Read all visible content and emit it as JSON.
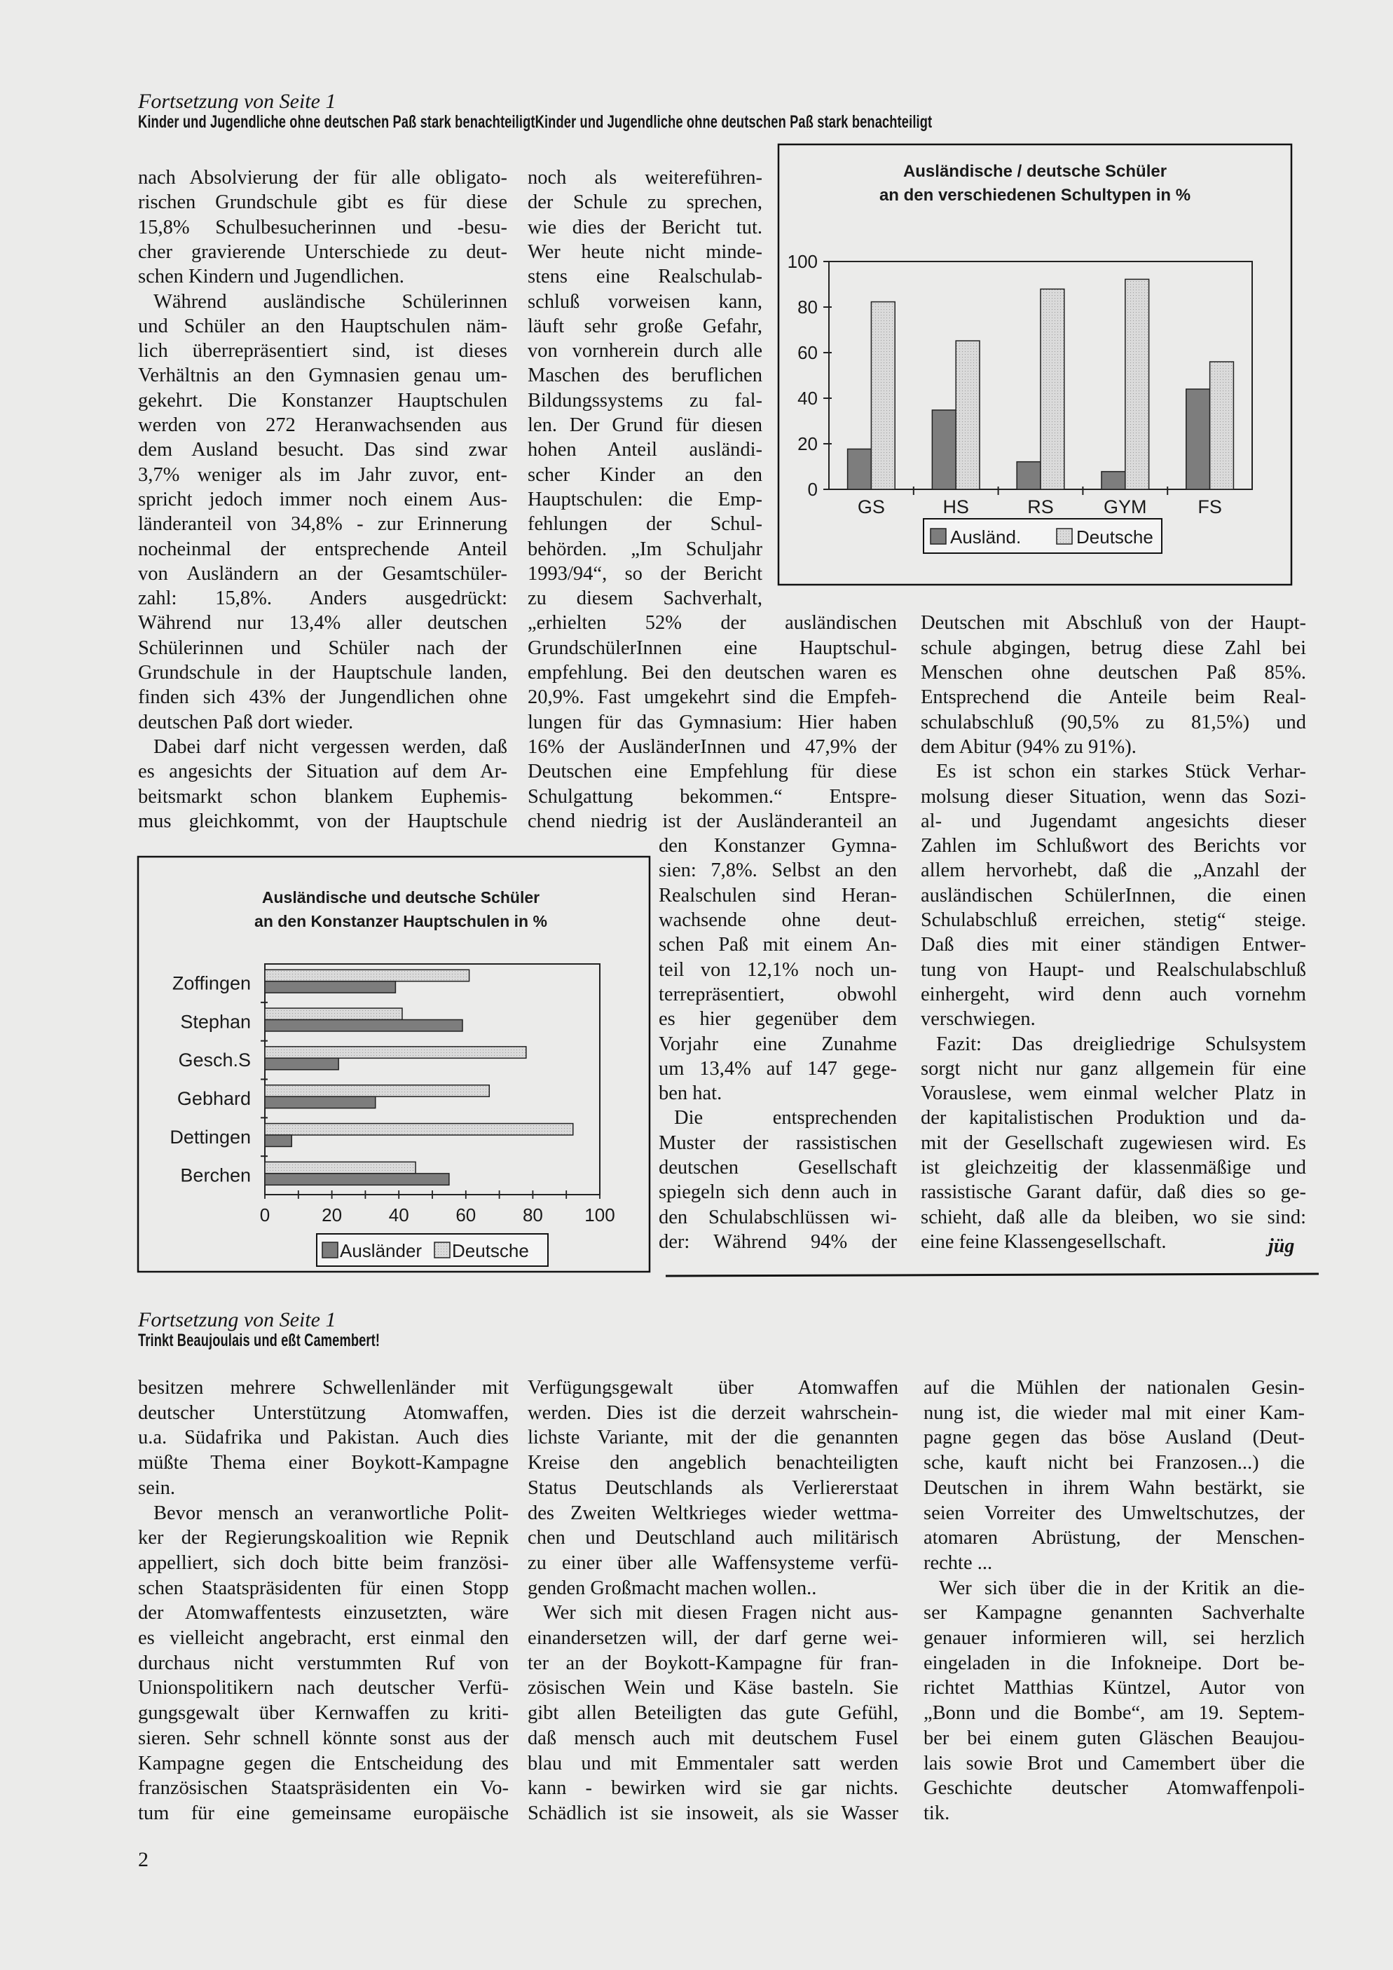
{
  "article1": {
    "kicker": "Fortsetzung von Seite 1",
    "headline": "Kinder und Jugendliche ohne deutschen Paß stark benachteiligtKinder und Jugendliche ohne deutschen Paß stark benachteiligt",
    "col1": [
      [
        "nach Absolvierung der für alle obligato-",
        "rischen Grundschule gibt es für diese",
        "15,8% Schulbesucherinnen und -besu-",
        "cher gravierende Unterschiede zu deut-",
        "schen Kindern und Jugendlichen."
      ],
      [
        "Während ausländische Schülerinnen",
        "und Schüler an den Hauptschulen näm-",
        "lich überrepräsentiert sind, ist dieses",
        "Verhältnis an den Gymnasien genau um-",
        "gekehrt. Die Konstanzer Hauptschulen",
        "werden von 272 Heranwachsenden aus",
        "dem Ausland besucht. Das sind zwar",
        "3,7% weniger als im Jahr zuvor, ent-",
        "spricht jedoch immer noch einem Aus-",
        "länderanteil von 34,8% - zur Erinnerung",
        "nocheinmal der entsprechende Anteil",
        "von Ausländern an der Gesamtschüler-",
        "zahl: 15,8%. Anders ausgedrückt:",
        "Während nur 13,4% aller deutschen",
        "Schülerinnen und Schüler nach der",
        "Grundschule in der Hauptschule landen,",
        "finden sich 43% der Jungendlichen ohne",
        "deutschen Paß dort wieder."
      ],
      [
        "Dabei darf nicht vergessen werden, daß",
        "es angesichts der Situation auf dem Ar-",
        "beitsmarkt schon blankem Euphemis-",
        "mus gleichkommt, von der Hauptschule"
      ]
    ],
    "col2": [
      [
        "noch als weitereführen-",
        "der Schule zu sprechen,",
        "wie dies der Bericht tut.",
        "Wer heute nicht minde-",
        "stens eine Realschulab-",
        "schluß vorweisen kann,",
        "läuft sehr große Gefahr,",
        "von vornherein durch alle",
        "Maschen des beruflichen",
        "Bildungssystems zu fal-",
        "len. Der Grund für diesen",
        "hohen Anteil ausländi-",
        "scher Kinder an den",
        "Hauptschulen: die Emp-",
        "fehlungen der Schul-",
        "behörden. „Im Schuljahr",
        "1993/94“, so der Bericht",
        "zu diesem Sachverhalt,",
        "„erhielten 52% der ausländischen",
        "GrundschülerInnen eine Hauptschul-",
        "empfehlung. Bei den deutschen waren es",
        "20,9%. Fast umgekehrt sind die Empfeh-",
        "lungen für das Gymnasium: Hier haben",
        "16% der AusländerInnen und 47,9% der",
        "Deutschen eine Empfehlung für diese",
        "Schulgattung bekommen.“ Entspre-",
        "chend niedrig ist der Ausländeranteil an",
        "den Konstanzer Gymna-",
        "sien: 7,8%. Selbst an den",
        "Realschulen sind Heran-",
        "wachsende ohne deut-",
        "schen Paß mit einem An-",
        "teil von 12,1% noch un-",
        "terrepräsentiert, obwohl",
        "es hier gegenüber dem",
        "Vorjahr eine Zunahme",
        "um 13,4% auf 147 gege-",
        "ben hat."
      ],
      [
        "Die entsprechenden",
        "Muster der rassistischen",
        "deutschen Gesellschaft",
        "spiegeln sich denn auch in",
        "den Schulabschlüssen wi-",
        "der: Während 94% der"
      ]
    ],
    "col3": [
      [
        "Deutschen mit Abschluß von der Haupt-",
        "schule abgingen, betrug diese Zahl bei",
        "Menschen ohne deutschen Paß 85%.",
        "Entsprechend die Anteile beim Real-",
        "schulabschluß (90,5% zu 81,5%) und",
        "dem Abitur (94% zu 91%)."
      ],
      [
        "Es ist schon ein starkes Stück Verhar-",
        "molsung dieser Situation, wenn das Sozi-",
        "al- und Jugendamt angesichts dieser",
        "Zahlen im Schlußwort des Berichts vor",
        "allem hervorhebt, daß die „Anzahl der",
        "ausländischen SchülerInnen, die einen",
        "Schulabschluß erreichen, stetig“ steige.",
        "Daß dies mit einer ständigen Entwer-",
        "tung von Haupt- und Realschulabschluß",
        "einhergeht, wird denn auch vornehm",
        "verschwiegen."
      ],
      [
        "Fazit: Das dreigliedrige Schulsystem",
        "sorgt nicht nur ganz allgemein für eine",
        "Vorauslese, wem einmal welcher Platz in",
        "der kapitalistischen Produktion und da-",
        "mit der Gesellschaft zugewiesen wird. Es",
        "ist gleichzeitig der klassenmäßige und",
        "rassistische Garant dafür, daß dies so ge-",
        "schieht, daß alle da bleiben, wo sie sind:",
        "eine feine Klassengesellschaft."
      ]
    ],
    "signature": "jüg"
  },
  "article2": {
    "kicker": "Fortsetzung von Seite 1",
    "headline": "Trinkt Beaujoulais und eßt Camembert!",
    "col1": [
      [
        "besitzen mehrere Schwellenländer mit",
        "deutscher Unterstützung Atomwaffen,",
        "u.a. Südafrika und Pakistan. Auch dies",
        "müßte Thema einer Boykott-Kampagne",
        "sein."
      ],
      [
        "Bevor mensch an veranwortliche Polit-",
        "ker der Regierungskoalition wie Repnik",
        "appelliert, sich doch bitte beim französi-",
        "schen Staatspräsidenten für einen Stopp",
        "der Atomwaffentests einzusetzten, wäre",
        "es vielleicht angebracht, erst einmal den",
        "durchaus nicht verstummten Ruf von",
        "Unionspolitikern nach deutscher Verfü-",
        "gungsgewalt über Kernwaffen zu kriti-",
        "sieren. Sehr schnell könnte sonst aus der",
        "Kampagne gegen die Entscheidung des",
        "französischen Staatspräsidenten ein Vo-",
        "tum für eine gemeinsame europäische"
      ]
    ],
    "col2": [
      [
        "Verfügungsgewalt über Atomwaffen",
        "werden. Dies ist die derzeit wahrschein-",
        "lichste Variante, mit der die genannten",
        "Kreise den angeblich benachteiligten",
        "Status Deutschlands als Verliererstaat",
        "des Zweiten Weltkrieges wieder wettma-",
        "chen und Deutschland auch militärisch",
        "zu einer über alle Waffensysteme verfü-",
        "genden Großmacht machen wollen.."
      ],
      [
        "Wer sich mit diesen Fragen nicht aus-",
        "einandersetzen will, der darf gerne wei-",
        "ter an der Boykott-Kampagne für fran-",
        "zösischen Wein und Käse basteln. Sie",
        "gibt allen Beteiligten das gute Gefühl,",
        "daß mensch auch mit deutschem Fusel",
        "blau und mit Emmentaler satt werden",
        "kann - bewirken wird sie gar nichts.",
        "Schädlich ist sie insoweit, als sie Wasser"
      ]
    ],
    "col3": [
      [
        "auf die Mühlen der nationalen Gesin-",
        "nung ist, die wieder mal mit einer Kam-",
        "pagne gegen das böse Ausland (Deut-",
        "sche, kauft nicht bei Franzosen...) die",
        "Deutschen in ihrem Wahn bestärkt, sie",
        "seien Vorreiter des Umweltschutzes, der",
        "atomaren Abrüstung, der Menschen-",
        "rechte ..."
      ],
      [
        "Wer sich über die in der Kritik an die-",
        "ser Kampagne genannten Sachverhalte",
        "genauer informieren will, sei herzlich",
        "eingeladen in die Infokneipe. Dort be-",
        "richtet Matthias Küntzel, Autor von",
        "„Bonn und die Bombe“, am 19. Septem-",
        "ber bei einem guten Gläschen Beaujou-",
        "lais sowie Brot und Camembert über die",
        "Geschichte deutscher Atomwaffenpoli-",
        "tik."
      ]
    ]
  },
  "page_number": "2",
  "chart_data": [
    {
      "type": "bar",
      "orientation": "vertical",
      "title": "Ausländische / deutsche Schüler",
      "subtitle": "an den verschiedenen Schultypen in %",
      "categories": [
        "GS",
        "HS",
        "RS",
        "GYM",
        "FS"
      ],
      "series": [
        {
          "name": "Ausländ.",
          "values": [
            17.7,
            34.8,
            12.1,
            7.8,
            44
          ],
          "color": "#7d7d7d"
        },
        {
          "name": "Deutsche",
          "values": [
            82.3,
            65.2,
            87.9,
            92.2,
            56
          ],
          "color": "#d6d6d6"
        }
      ],
      "ylim": [
        0,
        100
      ],
      "yticks": [
        "0",
        "20",
        "40",
        "60",
        "80",
        "100"
      ],
      "legend": "bottom",
      "grid": false
    },
    {
      "type": "bar",
      "orientation": "horizontal",
      "title": "Ausländische und deutsche Schüler",
      "subtitle": "an den Konstanzer Hauptschulen in %",
      "categories": [
        "Zoffingen",
        "Stephan",
        "Gesch.S",
        "Gebhard",
        "Dettingen",
        "Berchen"
      ],
      "series": [
        {
          "name": "Ausländer",
          "values": [
            39,
            59,
            22,
            33,
            8,
            55
          ],
          "color": "#7d7d7d"
        },
        {
          "name": "Deutsche",
          "values": [
            61,
            41,
            78,
            67,
            92,
            45
          ],
          "color": "#d6d6d6"
        }
      ],
      "xlim": [
        0,
        100
      ],
      "xticks": [
        "0",
        "20",
        "40",
        "60",
        "80",
        "100"
      ],
      "legend": "bottom",
      "grid": false
    }
  ]
}
